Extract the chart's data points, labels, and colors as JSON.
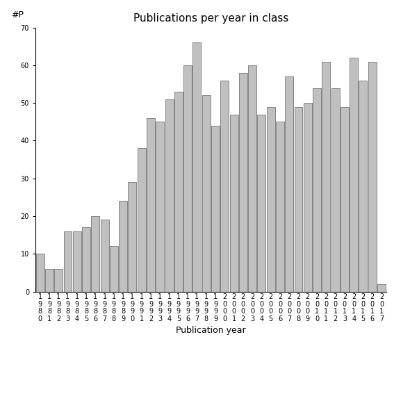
{
  "title": "Publications per year in class",
  "xlabel": "Publication year",
  "ylabel": "#P",
  "years": [
    "1980",
    "1981",
    "1982",
    "1983",
    "1984",
    "1985",
    "1986",
    "1987",
    "1988",
    "1989",
    "1990",
    "1991",
    "1992",
    "1993",
    "1994",
    "1995",
    "1996",
    "1997",
    "1998",
    "1999",
    "2000",
    "2001",
    "2002",
    "2003",
    "2004",
    "2005",
    "2006",
    "2007",
    "2008",
    "2009",
    "2010",
    "2011",
    "2012",
    "2013",
    "2014",
    "2015",
    "2016",
    "2017"
  ],
  "values": [
    10,
    6,
    6,
    16,
    16,
    17,
    20,
    19,
    12,
    24,
    29,
    38,
    46,
    45,
    51,
    53,
    60,
    66,
    52,
    44,
    56,
    47,
    58,
    60,
    47,
    49,
    45,
    57,
    49,
    50,
    54,
    61,
    54,
    49,
    62,
    56,
    61,
    2
  ],
  "bar_color": "#c0c0c0",
  "bar_edge_color": "#606060",
  "ylim": [
    0,
    70
  ],
  "yticks": [
    0,
    10,
    20,
    30,
    40,
    50,
    60,
    70
  ],
  "bg_color": "#ffffff",
  "title_fontsize": 11,
  "label_fontsize": 9,
  "tick_fontsize": 7
}
